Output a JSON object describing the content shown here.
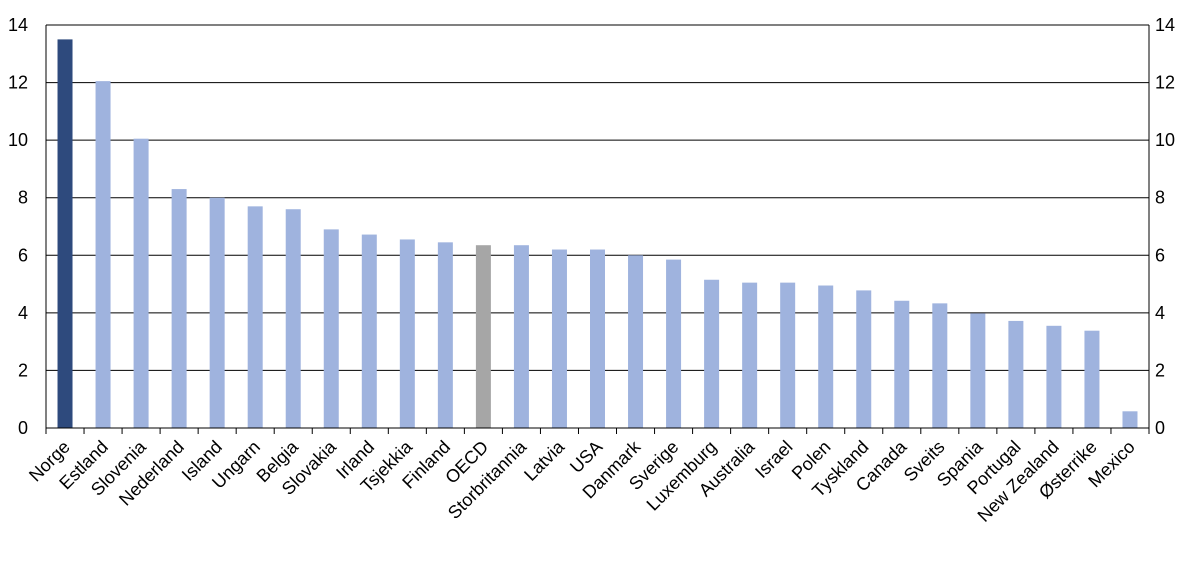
{
  "chart_data": {
    "type": "bar",
    "title": "",
    "xlabel": "",
    "ylabel": "",
    "ylim": [
      0,
      14
    ],
    "yticks": [
      0,
      2,
      4,
      6,
      8,
      10,
      12,
      14
    ],
    "grid": true,
    "secondary_y_axis": true,
    "legend": "none",
    "colors": {
      "default": "#9fb3de",
      "highlight": "#2e4a7d",
      "oecd": "#a6a6a6"
    },
    "categories": [
      "Norge",
      "Estland",
      "Slovenia",
      "Nederland",
      "Island",
      "Ungarn",
      "Belgia",
      "Slovakia",
      "Irland",
      "Tsjekkia",
      "Finland",
      "OECD",
      "Storbritannia",
      "Latvia",
      "USA",
      "Danmark",
      "Sverige",
      "Luxemburg",
      "Australia",
      "Israel",
      "Polen",
      "Tyskland",
      "Canada",
      "Sveits",
      "Spania",
      "Portugal",
      "New Zealand",
      "Østerrike",
      "Mexico"
    ],
    "values": [
      13.5,
      12.05,
      10.05,
      8.3,
      8.0,
      7.7,
      7.6,
      6.9,
      6.72,
      6.55,
      6.45,
      6.35,
      6.35,
      6.2,
      6.2,
      6.0,
      5.85,
      5.15,
      5.05,
      5.05,
      4.95,
      4.78,
      4.42,
      4.33,
      3.98,
      3.72,
      3.55,
      3.38,
      0.58
    ],
    "bar_color_keys": [
      "highlight",
      "default",
      "default",
      "default",
      "default",
      "default",
      "default",
      "default",
      "default",
      "default",
      "default",
      "oecd",
      "default",
      "default",
      "default",
      "default",
      "default",
      "default",
      "default",
      "default",
      "default",
      "default",
      "default",
      "default",
      "default",
      "default",
      "default",
      "default",
      "default"
    ]
  }
}
